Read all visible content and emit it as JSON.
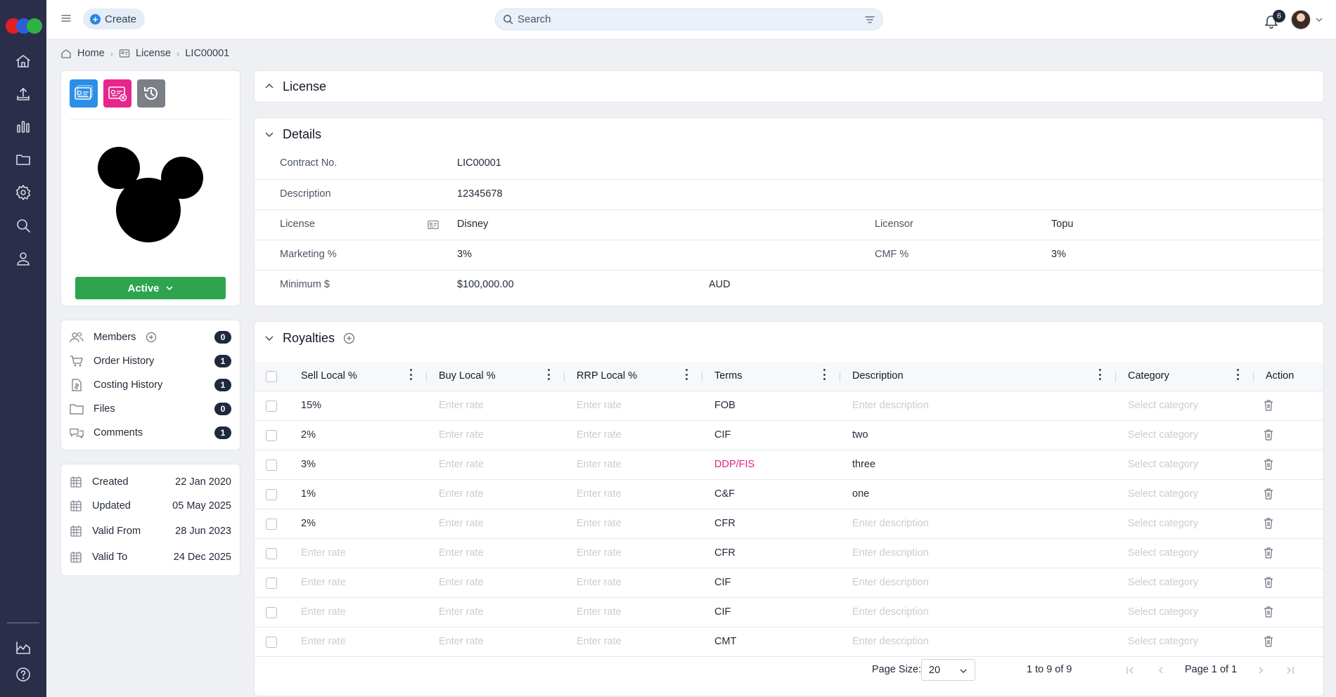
{
  "header": {
    "create_label": "Create",
    "search_placeholder": "Search",
    "notification_count": "6"
  },
  "breadcrumb": {
    "home": "Home",
    "license": "License",
    "current": "LIC00001"
  },
  "profile_card": {
    "status_label": "Active"
  },
  "links": [
    {
      "label": "Members",
      "count": "0"
    },
    {
      "label": "Order History",
      "count": "1"
    },
    {
      "label": "Costing History",
      "count": "1"
    },
    {
      "label": "Files",
      "count": "0"
    },
    {
      "label": "Comments",
      "count": "1"
    }
  ],
  "dates": [
    {
      "label": "Created",
      "value": "22 Jan 2020"
    },
    {
      "label": "Updated",
      "value": "05 May 2025"
    },
    {
      "label": "Valid From",
      "value": "28 Jun 2023"
    },
    {
      "label": "Valid To",
      "value": "24 Dec 2025"
    }
  ],
  "license_section": {
    "title": "License"
  },
  "details": {
    "title": "Details",
    "contract_label": "Contract No.",
    "contract_value": "LIC00001",
    "description_label": "Description",
    "description_value": "12345678",
    "license_label": "License",
    "license_value": "Disney",
    "licensor_label": "Licensor",
    "licensor_value": "Topu",
    "marketing_label": "Marketing %",
    "marketing_value": "3%",
    "cmf_label": "CMF %",
    "cmf_value": "3%",
    "minimum_label": "Minimum $",
    "minimum_value": "$100,000.00",
    "currency": "AUD"
  },
  "royalties": {
    "title": "Royalties",
    "columns": {
      "sell": "Sell Local %",
      "buy": "Buy Local %",
      "rrp": "RRP Local %",
      "terms": "Terms",
      "description": "Description",
      "category": "Category",
      "action": "Action"
    },
    "placeholders": {
      "rate": "Enter rate",
      "description": "Enter description",
      "category": "Select category"
    },
    "rows": [
      {
        "sell": "15%",
        "terms": "FOB",
        "description": ""
      },
      {
        "sell": "2%",
        "terms": "CIF",
        "description": "two"
      },
      {
        "sell": "3%",
        "terms": "DDP/FIS",
        "description": "three",
        "highlight": true
      },
      {
        "sell": "1%",
        "terms": "C&F",
        "description": "one"
      },
      {
        "sell": "2%",
        "terms": "CFR",
        "description": ""
      },
      {
        "sell": "",
        "terms": "CFR",
        "description": ""
      },
      {
        "sell": "",
        "terms": "CIF",
        "description": ""
      },
      {
        "sell": "",
        "terms": "CIF",
        "description": ""
      },
      {
        "sell": "",
        "terms": "CMT",
        "description": ""
      }
    ],
    "footer": {
      "page_size_label": "Page Size:",
      "page_size_value": "20",
      "range_text": "1 to 9 of 9",
      "page_text": "Page 1 of 1"
    }
  },
  "colors": {
    "sidebar": "#2b2e4a",
    "active_status": "#2ea44f",
    "highlight_term": "#d92580"
  }
}
